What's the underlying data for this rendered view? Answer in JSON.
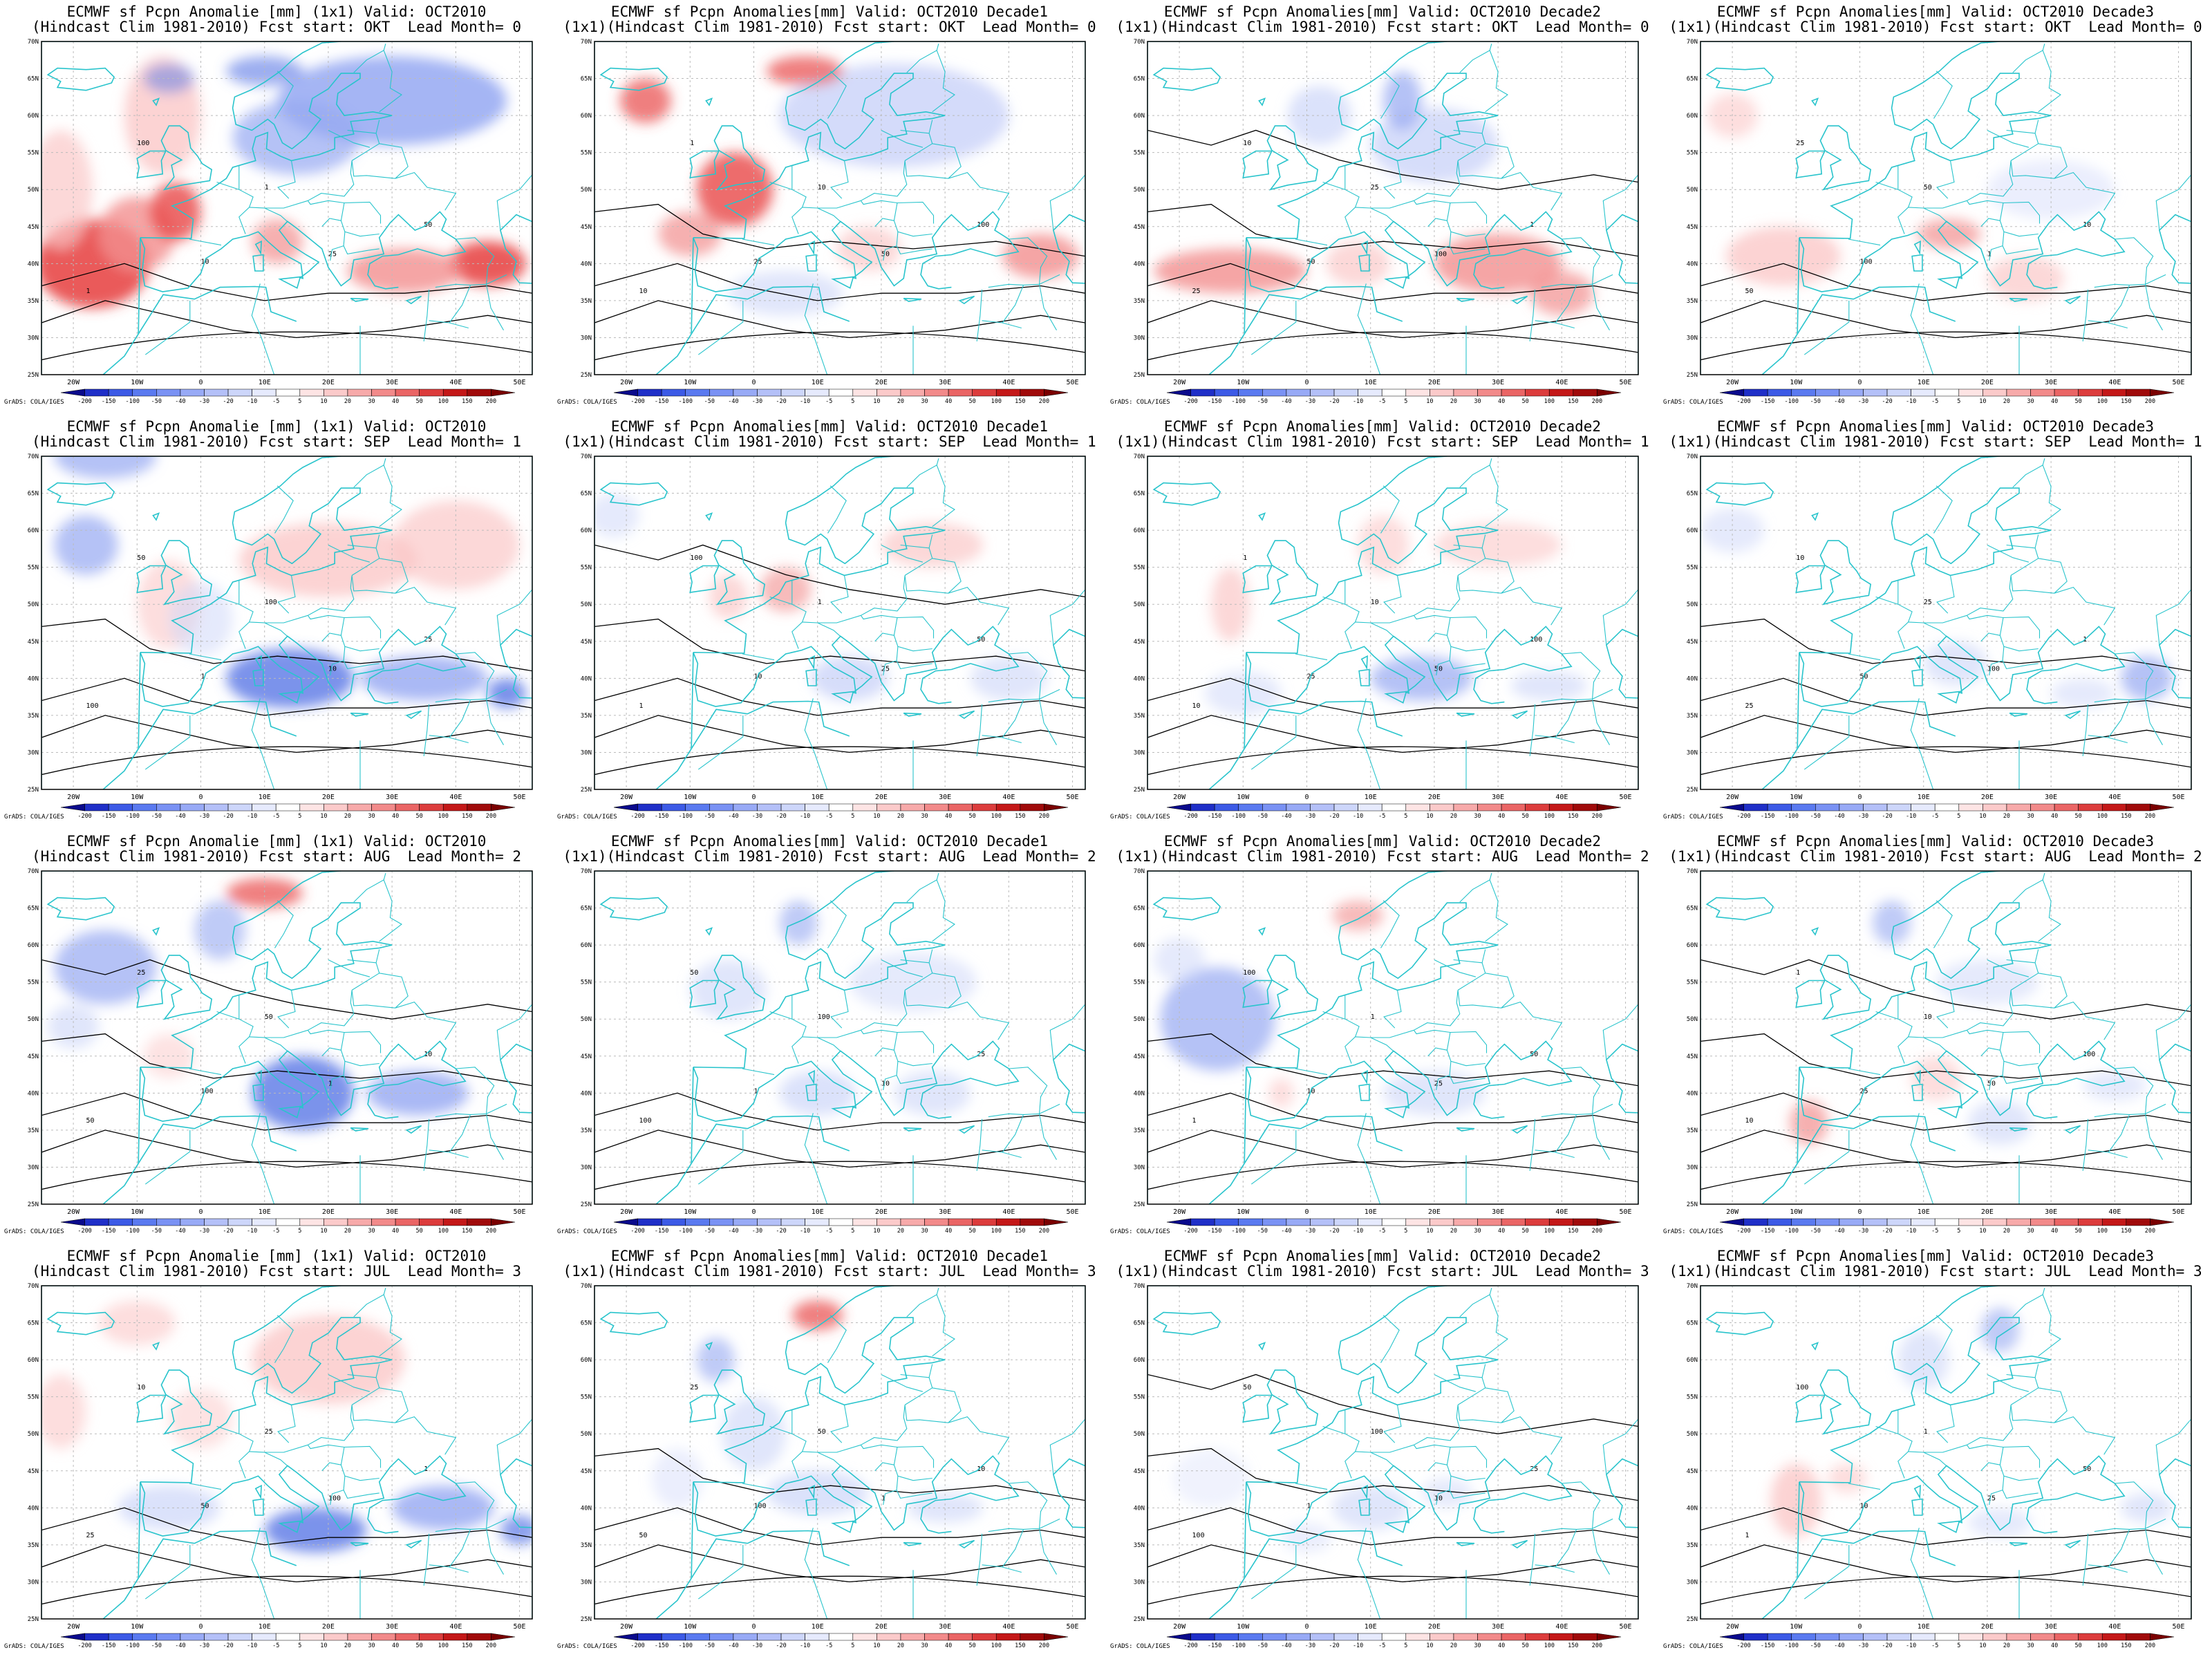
{
  "figure": {
    "rows": [
      {
        "forecast_start": "OKT",
        "lead_month": "0"
      },
      {
        "forecast_start": "SEP",
        "lead_month": "1"
      },
      {
        "forecast_start": "AUG",
        "lead_month": "2"
      },
      {
        "forecast_start": "JUL",
        "lead_month": "3"
      }
    ],
    "columns": [
      {
        "type": "monthly"
      },
      {
        "type": "decade",
        "name": "Decade1"
      },
      {
        "type": "decade",
        "name": "Decade2"
      },
      {
        "type": "decade",
        "name": "Decade3"
      }
    ],
    "panels": [
      {
        "title1": "ECMWF sf Pcpn Anomalie [mm] (1x1) Valid: OCT2010",
        "title2": "(Hindcast Clim 1981-2010) Fcst start: OKT  Lead Month= 0"
      },
      {
        "title1": "ECMWF sf Pcpn Anomalies[mm] Valid: OCT2010 Decade1",
        "title2": "(1x1)(Hindcast Clim 1981-2010) Fcst start: OKT  Lead Month= 0"
      },
      {
        "title1": "ECMWF sf Pcpn Anomalies[mm] Valid: OCT2010 Decade2",
        "title2": "(1x1)(Hindcast Clim 1981-2010) Fcst start: OKT  Lead Month= 0"
      },
      {
        "title1": "ECMWF sf Pcpn Anomalies[mm] Valid: OCT2010 Decade3",
        "title2": "(1x1)(Hindcast Clim 1981-2010) Fcst start: OKT  Lead Month= 0"
      },
      {
        "title1": "ECMWF sf Pcpn Anomalie [mm] (1x1) Valid: OCT2010",
        "title2": "(Hindcast Clim 1981-2010) Fcst start: SEP  Lead Month= 1"
      },
      {
        "title1": "ECMWF sf Pcpn Anomalies[mm] Valid: OCT2010 Decade1",
        "title2": "(1x1)(Hindcast Clim 1981-2010) Fcst start: SEP  Lead Month= 1"
      },
      {
        "title1": "ECMWF sf Pcpn Anomalies[mm] Valid: OCT2010 Decade2",
        "title2": "(1x1)(Hindcast Clim 1981-2010) Fcst start: SEP  Lead Month= 1"
      },
      {
        "title1": "ECMWF sf Pcpn Anomalies[mm] Valid: OCT2010 Decade3",
        "title2": "(1x1)(Hindcast Clim 1981-2010) Fcst start: SEP  Lead Month= 1"
      },
      {
        "title1": "ECMWF sf Pcpn Anomalie [mm] (1x1) Valid: OCT2010",
        "title2": "(Hindcast Clim 1981-2010) Fcst start: AUG  Lead Month= 2"
      },
      {
        "title1": "ECMWF sf Pcpn Anomalies[mm] Valid: OCT2010 Decade1",
        "title2": "(1x1)(Hindcast Clim 1981-2010) Fcst start: AUG  Lead Month= 2"
      },
      {
        "title1": "ECMWF sf Pcpn Anomalies[mm] Valid: OCT2010 Decade2",
        "title2": "(1x1)(Hindcast Clim 1981-2010) Fcst start: AUG  Lead Month= 2"
      },
      {
        "title1": "ECMWF sf Pcpn Anomalies[mm] Valid: OCT2010 Decade3",
        "title2": "(1x1)(Hindcast Clim 1981-2010) Fcst start: AUG  Lead Month= 2"
      },
      {
        "title1": "ECMWF sf Pcpn Anomalie [mm] (1x1) Valid: OCT2010",
        "title2": "(Hindcast Clim 1981-2010) Fcst start: JUL  Lead Month= 3"
      },
      {
        "title1": "ECMWF sf Pcpn Anomalies[mm] Valid: OCT2010 Decade1",
        "title2": "(1x1)(Hindcast Clim 1981-2010) Fcst start: JUL  Lead Month= 3"
      },
      {
        "title1": "ECMWF sf Pcpn Anomalies[mm] Valid: OCT2010 Decade2",
        "title2": "(1x1)(Hindcast Clim 1981-2010) Fcst start: JUL  Lead Month= 3"
      },
      {
        "title1": "ECMWF sf Pcpn Anomalies[mm] Valid: OCT2010 Decade3",
        "title2": "(1x1)(Hindcast Clim 1981-2010) Fcst start: JUL  Lead Month= 3"
      }
    ],
    "lat_labels": [
      "70N",
      "65N",
      "60N",
      "55N",
      "50N",
      "45N",
      "40N",
      "35N",
      "30N",
      "25N"
    ],
    "lon_labels": [
      "20W",
      "10W",
      "0",
      "10E",
      "20E",
      "30E",
      "40E",
      "50E"
    ],
    "colorbar": {
      "labels": [
        "-200",
        "-150",
        "-100",
        "-50",
        "-40",
        "-30",
        "-20",
        "-10",
        "-5",
        "5",
        "10",
        "20",
        "30",
        "40",
        "50",
        "100",
        "150",
        "200"
      ],
      "colors": [
        "#0a0a8c",
        "#1f2fc8",
        "#3c5ae6",
        "#5a7af0",
        "#7a92f4",
        "#98aaf6",
        "#b4c0f8",
        "#cdd6fa",
        "#e6eafd",
        "#ffffff",
        "#fde4e4",
        "#fbcaca",
        "#f7aaaa",
        "#f28a8a",
        "#ea6565",
        "#dc3c3c",
        "#c41818",
        "#a00a0a",
        "#7a0000"
      ]
    },
    "credit": "GrADS: COLA/IGES",
    "colors": {
      "coastline": "#29c4cc",
      "contour": "#000000",
      "grid": "#bbbbbb"
    },
    "contour_labels": [
      "1",
      "10",
      "25",
      "50",
      "100"
    ]
  }
}
